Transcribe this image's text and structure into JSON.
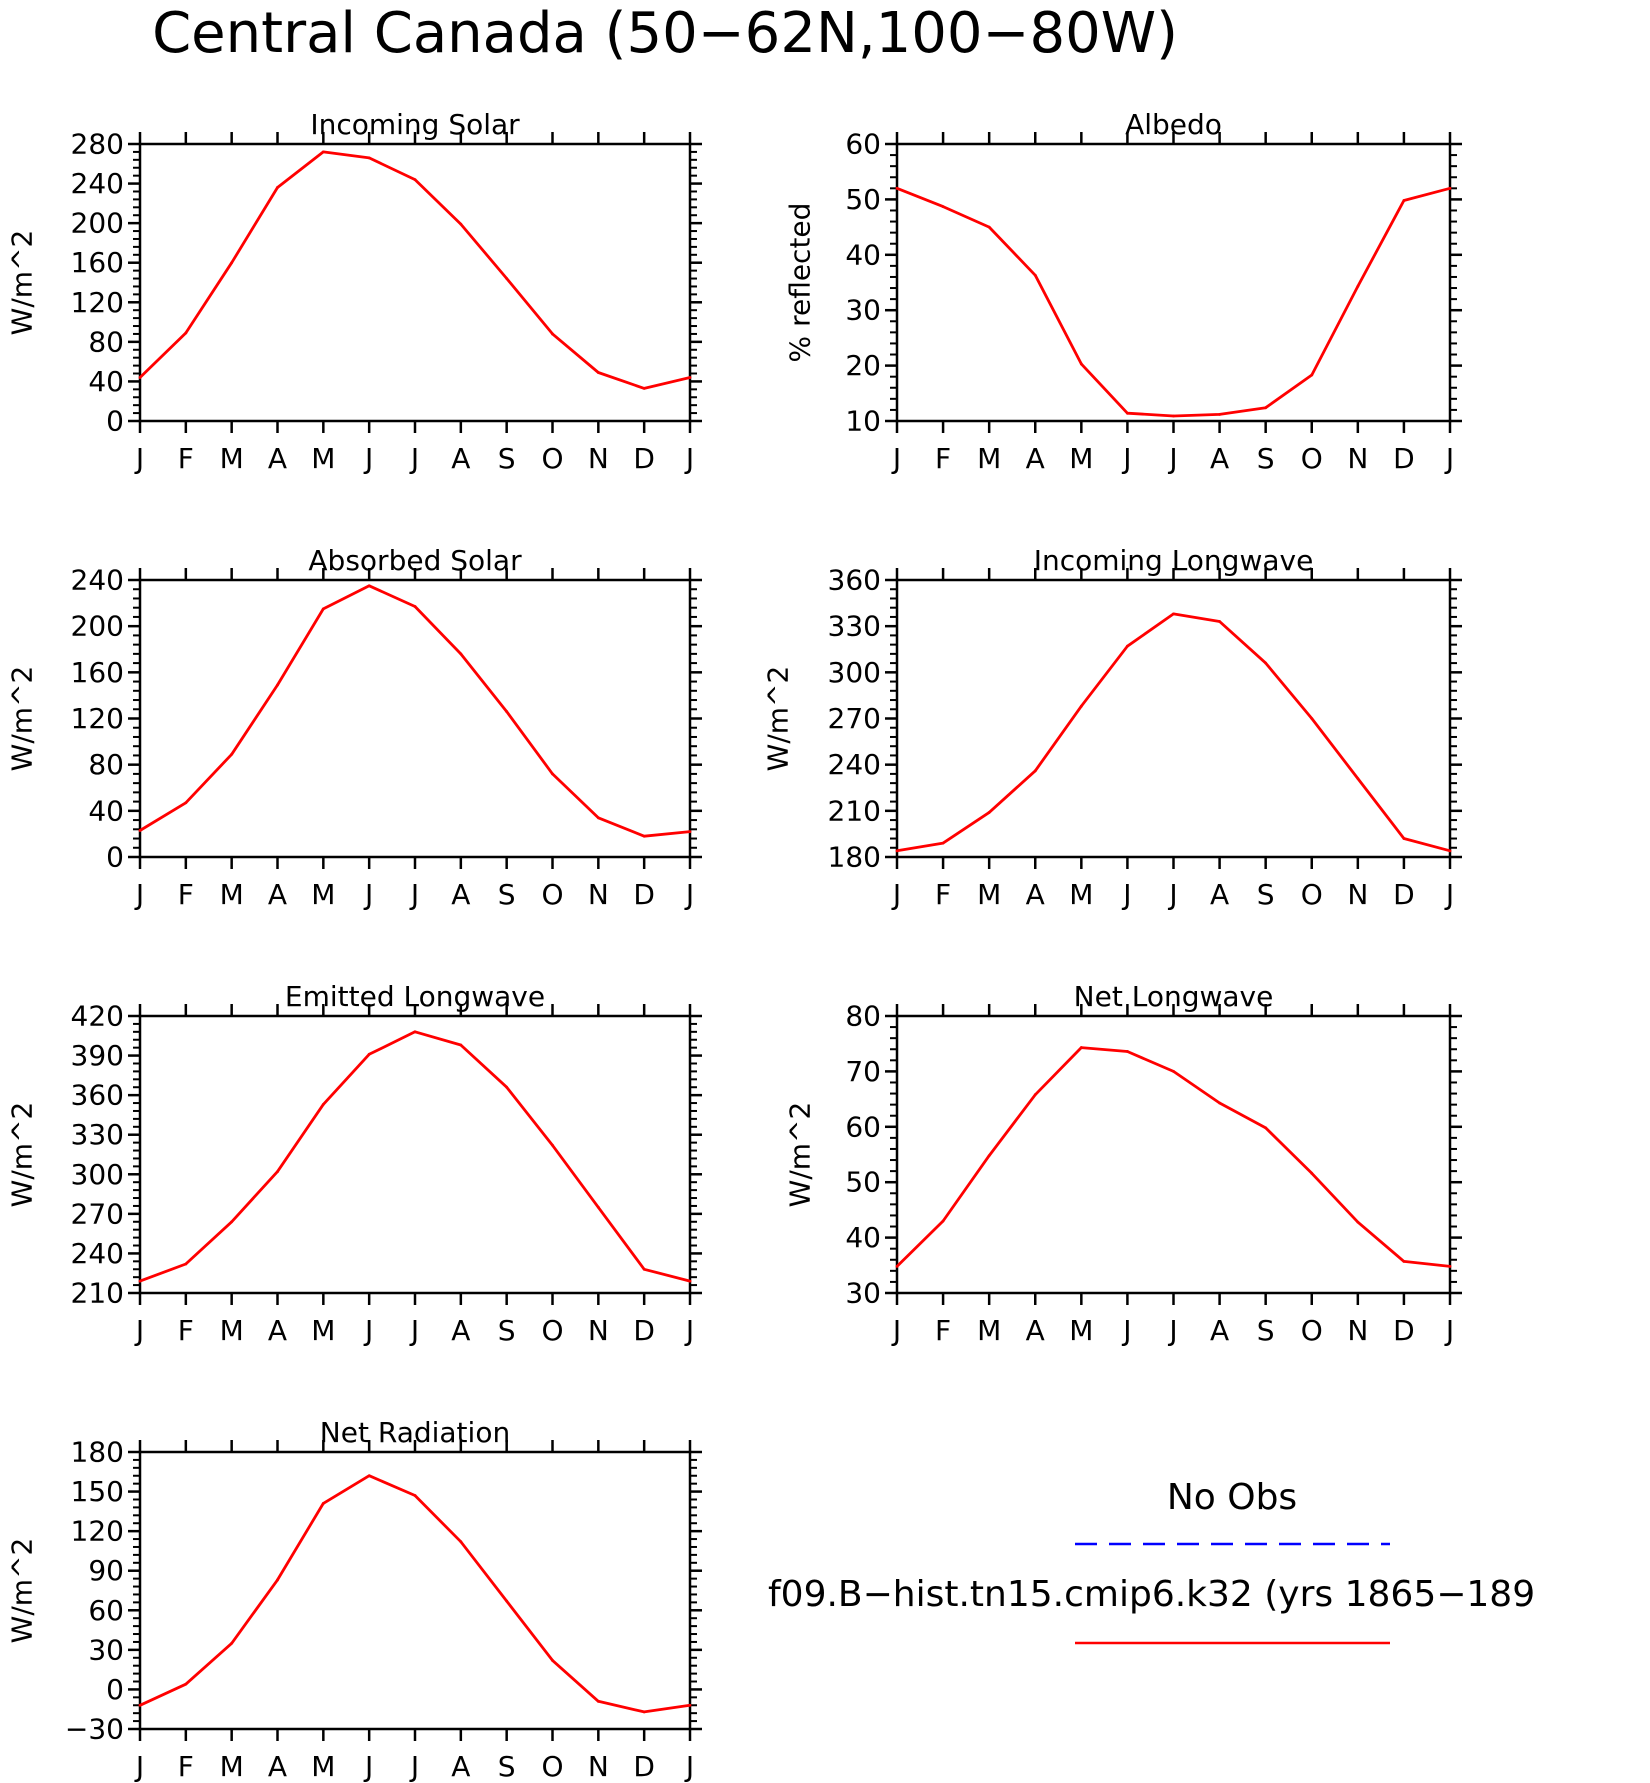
{
  "figure_title": "Central Canada (50−62N,100−80W)",
  "colors": {
    "model": "#ff0000",
    "obs": "#0000ff",
    "axis": "#000000"
  },
  "legend": {
    "obs_label": "No Obs",
    "model_label": "f09.B−hist.tn15.cmip6.k32 (yrs 1865−189"
  },
  "chart_data": [
    {
      "type": "line",
      "title": "Incoming Solar",
      "ylabel": "W/m^2",
      "categories": [
        "J",
        "F",
        "M",
        "A",
        "M",
        "J",
        "J",
        "A",
        "S",
        "O",
        "N",
        "D",
        "J"
      ],
      "ylim": [
        0,
        280
      ],
      "yticks": [
        0,
        40,
        80,
        120,
        160,
        200,
        240,
        280
      ],
      "ytick_labels": [
        "0",
        "40",
        "80",
        "120",
        "160",
        "200",
        "240",
        "280"
      ],
      "series": [
        {
          "values": [
            44,
            89,
            160,
            236,
            272,
            266,
            244,
            199,
            144,
            88,
            49,
            33,
            44
          ]
        }
      ]
    },
    {
      "type": "line",
      "title": "Albedo",
      "ylabel": "% reflected",
      "categories": [
        "J",
        "F",
        "M",
        "A",
        "M",
        "J",
        "J",
        "A",
        "S",
        "O",
        "N",
        "D",
        "J"
      ],
      "ylim": [
        10,
        60
      ],
      "yticks": [
        10,
        20,
        30,
        40,
        50,
        60
      ],
      "ytick_labels": [
        "10",
        "20",
        "30",
        "40",
        "50",
        "60"
      ],
      "series": [
        {
          "values": [
            52,
            48.7,
            45,
            36.3,
            20.3,
            11.4,
            10.9,
            11.2,
            12.4,
            18.3,
            34.3,
            49.8,
            52
          ]
        }
      ]
    },
    {
      "type": "line",
      "title": "Absorbed Solar",
      "ylabel": "W/m^2",
      "categories": [
        "J",
        "F",
        "M",
        "A",
        "M",
        "J",
        "J",
        "A",
        "S",
        "O",
        "N",
        "D",
        "J"
      ],
      "ylim": [
        0,
        240
      ],
      "yticks": [
        0,
        40,
        80,
        120,
        160,
        200,
        240
      ],
      "ytick_labels": [
        "0",
        "40",
        "80",
        "120",
        "160",
        "200",
        "240"
      ],
      "series": [
        {
          "values": [
            23,
            47,
            89,
            149,
            215,
            235,
            217,
            176,
            126,
            72,
            34,
            18,
            22
          ]
        }
      ]
    },
    {
      "type": "line",
      "title": "Incoming Longwave",
      "ylabel": "W/m^2",
      "categories": [
        "J",
        "F",
        "M",
        "A",
        "M",
        "J",
        "J",
        "A",
        "S",
        "O",
        "N",
        "D",
        "J"
      ],
      "ylim": [
        180,
        360
      ],
      "yticks": [
        180,
        210,
        240,
        270,
        300,
        330,
        360
      ],
      "ytick_labels": [
        "180",
        "210",
        "240",
        "270",
        "300",
        "330",
        "360"
      ],
      "series": [
        {
          "values": [
            184,
            189,
            209,
            236,
            278,
            317,
            338,
            333,
            306,
            270,
            231,
            192,
            184
          ]
        }
      ]
    },
    {
      "type": "line",
      "title": "Emitted Longwave",
      "ylabel": "W/m^2",
      "categories": [
        "J",
        "F",
        "M",
        "A",
        "M",
        "J",
        "J",
        "A",
        "S",
        "O",
        "N",
        "D",
        "J"
      ],
      "ylim": [
        210,
        420
      ],
      "yticks": [
        210,
        240,
        270,
        300,
        330,
        360,
        390,
        420
      ],
      "ytick_labels": [
        "210",
        "240",
        "270",
        "300",
        "330",
        "360",
        "390",
        "420"
      ],
      "series": [
        {
          "values": [
            219,
            232,
            264,
            302,
            353,
            391,
            408,
            398,
            366,
            322,
            275,
            228,
            219
          ]
        }
      ]
    },
    {
      "type": "line",
      "title": "Net Longwave",
      "ylabel": "W/m^2",
      "categories": [
        "J",
        "F",
        "M",
        "A",
        "M",
        "J",
        "J",
        "A",
        "S",
        "O",
        "N",
        "D",
        "J"
      ],
      "ylim": [
        30,
        80
      ],
      "yticks": [
        30,
        40,
        50,
        60,
        70,
        80
      ],
      "ytick_labels": [
        "30",
        "40",
        "50",
        "60",
        "70",
        "80"
      ],
      "series": [
        {
          "values": [
            34.8,
            43,
            54.8,
            65.8,
            74.3,
            73.6,
            70,
            64.3,
            59.8,
            51.6,
            42.8,
            35.7,
            34.8
          ]
        }
      ]
    },
    {
      "type": "line",
      "title": "Net Radiation",
      "ylabel": "W/m^2",
      "categories": [
        "J",
        "F",
        "M",
        "A",
        "M",
        "J",
        "J",
        "A",
        "S",
        "O",
        "N",
        "D",
        "J"
      ],
      "ylim": [
        -30,
        180
      ],
      "yticks": [
        -30,
        0,
        30,
        60,
        90,
        120,
        150,
        180
      ],
      "ytick_labels": [
        "−30",
        "0",
        "30",
        "60",
        "90",
        "120",
        "150",
        "180"
      ],
      "series": [
        {
          "values": [
            -12,
            4,
            35,
            83,
            141,
            162,
            147,
            112,
            67,
            22,
            -9,
            -17,
            -12
          ]
        }
      ]
    }
  ]
}
